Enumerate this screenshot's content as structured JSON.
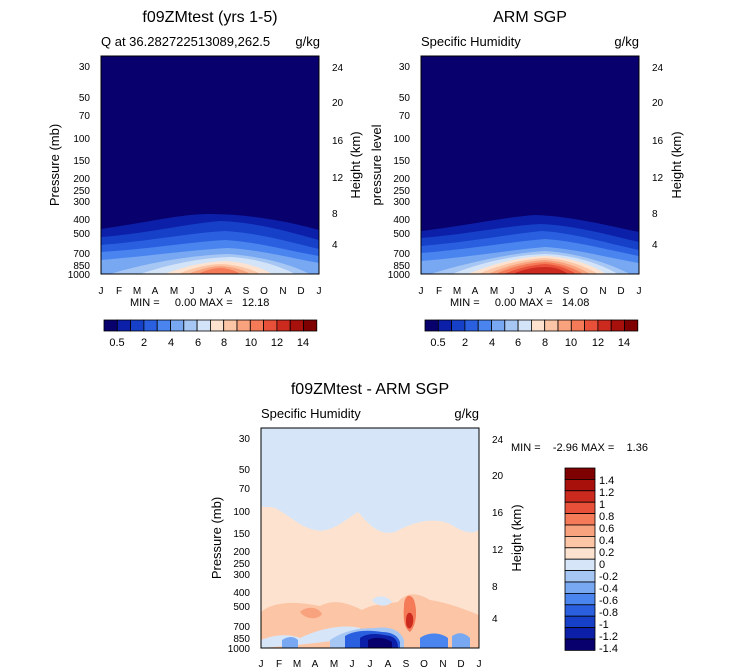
{
  "panels": [
    {
      "title": "f09ZMtest (yrs 1-5)",
      "subtitle_left": "Q at 36.282722513089,262.5",
      "subtitle_right": "g/kg",
      "ylabel_left": "Pressure (mb)",
      "ylabel_right": "Height (km)",
      "stats": "MIN =     0.00 MAX =   12.18"
    },
    {
      "title": "ARM SGP",
      "subtitle_left": "Specific Humidity",
      "subtitle_right": "g/kg",
      "ylabel_left": "pressure level",
      "ylabel_right": "Height (km)",
      "stats": "MIN =     0.00 MAX =   14.08"
    },
    {
      "title": "f09ZMtest - ARM SGP",
      "subtitle_left": "Specific Humidity",
      "subtitle_right": "g/kg",
      "ylabel_left": "Pressure (mb)",
      "ylabel_right": "Height (km)",
      "stats": "MIN =    -2.96 MAX =    1.36"
    }
  ],
  "pressure_ticks": [
    "30",
    "50",
    "70",
    "100",
    "150",
    "200",
    "250",
    "300",
    "400",
    "500",
    "700",
    "850",
    "1000"
  ],
  "height_ticks": [
    "4",
    "8",
    "12",
    "16",
    "20",
    "24"
  ],
  "month_ticks": [
    "J",
    "F",
    "M",
    "A",
    "M",
    "J",
    "J",
    "A",
    "S",
    "O",
    "N",
    "D",
    "J"
  ],
  "colorbar_labels": [
    "0.5",
    "2",
    "4",
    "6",
    "8",
    "10",
    "12",
    "14"
  ],
  "diff_colorbar_labels": [
    "1.4",
    "1.2",
    "1",
    "0.8",
    "0.6",
    "0.4",
    "0.2",
    "0",
    "-0.2",
    "-0.4",
    "-0.6",
    "-0.8",
    "-1",
    "-1.2",
    "-1.4"
  ],
  "colors": {
    "abs_scale": [
      "#08006d",
      "#0c1fa8",
      "#1640c8",
      "#2a60e0",
      "#4a84ee",
      "#78a8f2",
      "#a6c6f4",
      "#d4e4f8",
      "#fde3cf",
      "#fcc6a6",
      "#f9a27e",
      "#f47a58",
      "#e8503a",
      "#cc2a1e",
      "#a8100c",
      "#7e0000"
    ],
    "diff_scale": [
      "#7e0000",
      "#a8100c",
      "#cc2a1e",
      "#e8503a",
      "#f47a58",
      "#f9a27e",
      "#fcc6a6",
      "#fde3cf",
      "#d6e6f8",
      "#a6c6f4",
      "#78a8f2",
      "#4a84ee",
      "#2a60e0",
      "#1640c8",
      "#0c1fa8",
      "#08006d"
    ]
  },
  "chart_data": [
    {
      "type": "heatmap",
      "title": "f09ZMtest (yrs 1-5)",
      "subtitle": "Q at 36.282722513089,262.5",
      "units": "g/kg",
      "xlabel": "",
      "ylabel": "Pressure (mb)",
      "ylabel_right": "Height (km)",
      "x": [
        "J",
        "F",
        "M",
        "A",
        "M",
        "J",
        "J",
        "A",
        "S",
        "O",
        "N",
        "D",
        "J"
      ],
      "yscale": "log",
      "ylim": [
        1000,
        30
      ],
      "min": 0.0,
      "max": 12.18,
      "levels": [
        0.5,
        1,
        2,
        3,
        4,
        5,
        6,
        7,
        8,
        9,
        10,
        11,
        12,
        13,
        14
      ]
    },
    {
      "type": "heatmap",
      "title": "ARM SGP",
      "subtitle": "Specific Humidity",
      "units": "g/kg",
      "xlabel": "",
      "ylabel": "pressure level",
      "ylabel_right": "Height (km)",
      "x": [
        "J",
        "F",
        "M",
        "A",
        "M",
        "J",
        "J",
        "A",
        "S",
        "O",
        "N",
        "D",
        "J"
      ],
      "yscale": "log",
      "ylim": [
        1000,
        30
      ],
      "min": 0.0,
      "max": 14.08,
      "levels": [
        0.5,
        1,
        2,
        3,
        4,
        5,
        6,
        7,
        8,
        9,
        10,
        11,
        12,
        13,
        14
      ]
    },
    {
      "type": "heatmap",
      "title": "f09ZMtest - ARM SGP",
      "subtitle": "Specific Humidity",
      "units": "g/kg",
      "xlabel": "",
      "ylabel": "Pressure (mb)",
      "ylabel_right": "Height (km)",
      "x": [
        "J",
        "F",
        "M",
        "A",
        "M",
        "J",
        "J",
        "A",
        "S",
        "O",
        "N",
        "D",
        "J"
      ],
      "yscale": "log",
      "ylim": [
        1000,
        30
      ],
      "min": -2.96,
      "max": 1.36,
      "levels": [
        -1.4,
        -1.2,
        -1,
        -0.8,
        -0.6,
        -0.4,
        -0.2,
        0,
        0.2,
        0.4,
        0.6,
        0.8,
        1,
        1.2,
        1.4
      ]
    }
  ]
}
